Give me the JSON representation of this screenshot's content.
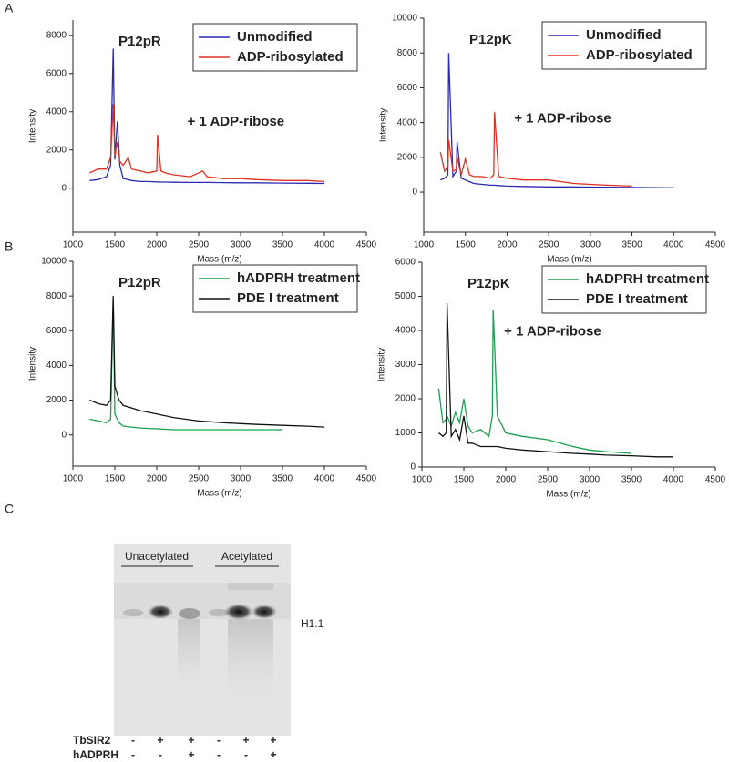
{
  "panel_labels": [
    "A",
    "B",
    "C"
  ],
  "chart_data": [
    {
      "type": "line",
      "title": "P12pR",
      "xlabel": "Mass (m/z)",
      "ylabel": "Intensity",
      "annotations": [
        "+ 1 ADP-ribose"
      ],
      "legend": "upper right",
      "xlim": [
        1000,
        4500
      ],
      "xticks": [
        1000,
        1500,
        2000,
        2500,
        3000,
        3500,
        4000,
        4500
      ],
      "ylim": [
        -2300,
        8800
      ],
      "yticks": [
        0,
        2000,
        4000,
        6000,
        8000
      ],
      "x": [
        1200,
        1300,
        1400,
        1450,
        1480,
        1500,
        1530,
        1560,
        1600,
        1660,
        1700,
        1800,
        1900,
        2000,
        2010,
        2050,
        2100,
        2200,
        2400,
        2550,
        2600,
        2800,
        3000,
        3200,
        3500,
        3800,
        4000
      ],
      "series": [
        {
          "name": "Unmodified",
          "color": "#2b2bb0",
          "values": [
            400,
            450,
            600,
            1200,
            7300,
            1500,
            3500,
            1200,
            500,
            450,
            400,
            350,
            350,
            330,
            330,
            320,
            320,
            310,
            300,
            300,
            300,
            290,
            280,
            280,
            270,
            260,
            250
          ]
        },
        {
          "name": "ADP-ribosylated",
          "color": "#e03020",
          "values": [
            800,
            1000,
            1000,
            1600,
            4400,
            1700,
            2400,
            1400,
            1200,
            1600,
            1000,
            900,
            800,
            900,
            2800,
            900,
            800,
            700,
            600,
            900,
            600,
            500,
            500,
            450,
            400,
            400,
            350
          ]
        }
      ]
    },
    {
      "type": "line",
      "title": "P12pK",
      "xlabel": "Mass (m/z)",
      "ylabel": "Intensity",
      "annotations": [
        "+ 1 ADP-ribose"
      ],
      "legend": "upper right",
      "xlim": [
        1000,
        4500
      ],
      "xticks": [
        1000,
        1500,
        2000,
        2500,
        3000,
        3500,
        4000,
        4500
      ],
      "ylim": [
        -2300,
        10000
      ],
      "yticks": [
        0,
        2000,
        4000,
        6000,
        8000,
        10000
      ],
      "x": [
        1200,
        1250,
        1290,
        1300,
        1350,
        1390,
        1400,
        1450,
        1500,
        1550,
        1600,
        1700,
        1800,
        1840,
        1850,
        1900,
        2000,
        2200,
        2500,
        2800,
        3000,
        3200,
        3500,
        3800,
        4000
      ],
      "series": [
        {
          "name": "Unmodified",
          "color": "#2b2bb0",
          "values": [
            700,
            800,
            1000,
            8000,
            900,
            1200,
            2900,
            800,
            700,
            600,
            500,
            450,
            400,
            400,
            400,
            380,
            350,
            330,
            300,
            300,
            290,
            280,
            270,
            260,
            250
          ]
        },
        {
          "name": "ADP-ribosylated",
          "color": "#e03020",
          "values": [
            2300,
            1200,
            1500,
            3000,
            1200,
            1300,
            2000,
            1000,
            1900,
            1000,
            900,
            900,
            800,
            1000,
            4600,
            900,
            800,
            700,
            700,
            500,
            450,
            400,
            350,
            null,
            null
          ]
        }
      ]
    },
    {
      "type": "line",
      "title": "P12pR",
      "xlabel": "Mass (m/z)",
      "ylabel": "Intensity",
      "annotations": [],
      "legend": "upper right",
      "xlim": [
        1000,
        4500
      ],
      "xticks": [
        1000,
        1500,
        2000,
        2500,
        3000,
        3500,
        4000,
        4500
      ],
      "ylim": [
        -1800,
        10000
      ],
      "yticks": [
        0,
        2000,
        4000,
        6000,
        8000,
        10000
      ],
      "x": [
        1200,
        1300,
        1400,
        1450,
        1480,
        1500,
        1550,
        1600,
        1800,
        2000,
        2200,
        2500,
        2800,
        3000,
        3200,
        3500,
        3800,
        4000
      ],
      "series": [
        {
          "name": "hADPRH treatment",
          "color": "#1aa050",
          "values": [
            900,
            800,
            700,
            900,
            7800,
            1200,
            700,
            500,
            400,
            350,
            300,
            300,
            300,
            300,
            300,
            300,
            null,
            null
          ]
        },
        {
          "name": "PDE I treatment",
          "color": "#111111",
          "values": [
            2000,
            1800,
            1700,
            2000,
            8000,
            2800,
            2000,
            1700,
            1400,
            1200,
            1000,
            800,
            700,
            650,
            600,
            550,
            500,
            450
          ]
        }
      ]
    },
    {
      "type": "line",
      "title": "P12pK",
      "xlabel": "Mass (m/z)",
      "ylabel": "Intensity",
      "annotations": [
        "+ 1 ADP-ribose"
      ],
      "legend": "upper right",
      "xlim": [
        1000,
        4500
      ],
      "xticks": [
        1000,
        1500,
        2000,
        2500,
        3000,
        3500,
        4000,
        4500
      ],
      "ylim": [
        0,
        6000
      ],
      "yticks": [
        0,
        1000,
        2000,
        3000,
        4000,
        5000,
        6000
      ],
      "x": [
        1200,
        1250,
        1290,
        1300,
        1350,
        1400,
        1450,
        1500,
        1550,
        1600,
        1700,
        1800,
        1840,
        1850,
        1900,
        2000,
        2200,
        2500,
        2800,
        3000,
        3200,
        3500,
        3800,
        4000
      ],
      "series": [
        {
          "name": "hADPRH treatment",
          "color": "#1aa050",
          "values": [
            2300,
            1300,
            1400,
            1500,
            1200,
            1600,
            1300,
            2000,
            1200,
            1000,
            1100,
            900,
            1500,
            4600,
            1500,
            1000,
            900,
            800,
            600,
            500,
            450,
            400,
            null,
            null
          ]
        },
        {
          "name": "PDE I treatment",
          "color": "#111111",
          "values": [
            1000,
            900,
            1000,
            4800,
            900,
            1100,
            800,
            1500,
            700,
            700,
            600,
            600,
            600,
            600,
            600,
            550,
            500,
            450,
            400,
            380,
            350,
            330,
            300,
            300
          ]
        }
      ]
    }
  ],
  "gel": {
    "group_labels": [
      "Unacetylated",
      "Acetylated"
    ],
    "band_label": "H1.1",
    "rows": [
      {
        "label": "TbSIR2",
        "signs": [
          "-",
          "+",
          "+",
          "-",
          "+",
          "+"
        ]
      },
      {
        "label": "hADPRH",
        "signs": [
          "-",
          "-",
          "+",
          "-",
          "-",
          "+"
        ]
      }
    ]
  }
}
